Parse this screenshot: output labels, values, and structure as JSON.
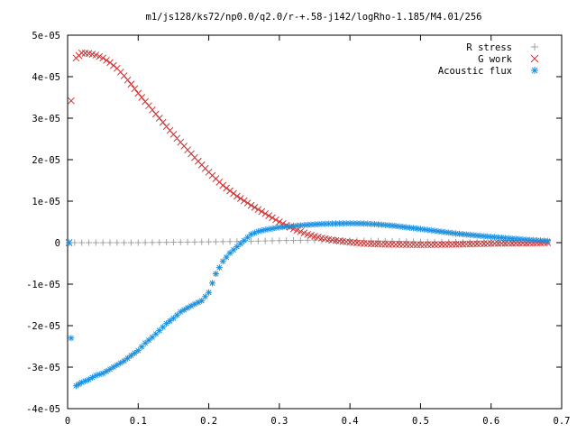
{
  "chart_data": {
    "type": "scatter",
    "title": "m1/js128/ks72/np0.0/q2.0/r-+.58-j142/logRho-1.185/M4.01/256",
    "xlabel": "",
    "ylabel": "",
    "xlim": [
      0,
      0.7
    ],
    "ylim": [
      -4e-05,
      5e-05
    ],
    "x_ticks": [
      {
        "value": 0,
        "label": "0"
      },
      {
        "value": 0.1,
        "label": "0.1"
      },
      {
        "value": 0.2,
        "label": "0.2"
      },
      {
        "value": 0.3,
        "label": "0.3"
      },
      {
        "value": 0.4,
        "label": "0.4"
      },
      {
        "value": 0.5,
        "label": "0.5"
      },
      {
        "value": 0.6,
        "label": "0.6"
      },
      {
        "value": 0.7,
        "label": "0.7"
      }
    ],
    "y_ticks": [
      {
        "value": 5e-05,
        "label": "5e-05"
      },
      {
        "value": 4e-05,
        "label": "4e-05"
      },
      {
        "value": 3e-05,
        "label": "3e-05"
      },
      {
        "value": 2e-05,
        "label": "2e-05"
      },
      {
        "value": 1e-05,
        "label": "1e-05"
      },
      {
        "value": 0,
        "label": "0"
      },
      {
        "value": -1e-05,
        "label": "-1e-05"
      },
      {
        "value": -2e-05,
        "label": "-2e-05"
      },
      {
        "value": -3e-05,
        "label": "-3e-05"
      },
      {
        "value": -4e-05,
        "label": "-4e-05"
      }
    ],
    "grid": false,
    "legend_position": "top-right",
    "series": [
      {
        "name": "R stress",
        "marker": "plus",
        "color": "#a0a0a0",
        "x": [
          0.002,
          0.01,
          0.05,
          0.1,
          0.15,
          0.2,
          0.25,
          0.3,
          0.35,
          0.4,
          0.45,
          0.5,
          0.55,
          0.6,
          0.65,
          0.68
        ],
        "y": [
          0,
          0,
          0.0,
          0.0,
          1e-07,
          2e-07,
          3e-07,
          5e-07,
          6e-07,
          5e-07,
          4e-07,
          2e-07,
          1e-07,
          0,
          0,
          0
        ]
      },
      {
        "name": "G work",
        "marker": "cross",
        "color": "#d03030",
        "x": [
          0.002,
          0.005,
          0.012,
          0.02,
          0.03,
          0.04,
          0.05,
          0.06,
          0.07,
          0.08,
          0.09,
          0.1,
          0.12,
          0.14,
          0.16,
          0.18,
          0.2,
          0.22,
          0.24,
          0.26,
          0.28,
          0.3,
          0.32,
          0.34,
          0.36,
          0.38,
          0.4,
          0.42,
          0.45,
          0.5,
          0.55,
          0.6,
          0.65,
          0.68
        ],
        "y": [
          0.0,
          3.42e-05,
          4.45e-05,
          4.57e-05,
          4.56e-05,
          4.52e-05,
          4.45e-05,
          4.34e-05,
          4.2e-05,
          4.02e-05,
          3.82e-05,
          3.6e-05,
          3.2e-05,
          2.8e-05,
          2.42e-05,
          2.05e-05,
          1.7e-05,
          1.38e-05,
          1.12e-05,
          9e-06,
          7e-06,
          5e-06,
          3.3e-06,
          2e-06,
          1.1e-06,
          5e-07,
          1e-07,
          -2e-07,
          -4e-07,
          -5e-07,
          -4e-07,
          -2e-07,
          -1e-07,
          0
        ]
      },
      {
        "name": "Acoustic flux",
        "marker": "star",
        "color": "#1a90e0",
        "x": [
          0.002,
          0.005,
          0.012,
          0.02,
          0.03,
          0.04,
          0.05,
          0.06,
          0.07,
          0.08,
          0.09,
          0.1,
          0.11,
          0.12,
          0.13,
          0.14,
          0.15,
          0.16,
          0.17,
          0.18,
          0.19,
          0.2,
          0.21,
          0.22,
          0.23,
          0.24,
          0.25,
          0.26,
          0.27,
          0.28,
          0.3,
          0.32,
          0.34,
          0.36,
          0.38,
          0.4,
          0.42,
          0.44,
          0.46,
          0.5,
          0.55,
          0.6,
          0.65,
          0.68
        ],
        "y": [
          0.0,
          -2.3e-05,
          -3.45e-05,
          -3.37e-05,
          -3.3e-05,
          -3.2e-05,
          -3.15e-05,
          -3.05e-05,
          -2.95e-05,
          -2.85e-05,
          -2.72e-05,
          -2.6e-05,
          -2.42e-05,
          -2.28e-05,
          -2.12e-05,
          -1.95e-05,
          -1.82e-05,
          -1.67e-05,
          -1.57e-05,
          -1.48e-05,
          -1.4e-05,
          -1.2e-05,
          -7.5e-06,
          -4.5e-06,
          -2.5e-06,
          -1e-06,
          5e-07,
          2e-06,
          2.7e-06,
          3.1e-06,
          3.7e-06,
          4e-06,
          4.3e-06,
          4.5e-06,
          4.6e-06,
          4.65e-06,
          4.6e-06,
          4.4e-06,
          4.1e-06,
          3.3e-06,
          2.2e-06,
          1.4e-06,
          7e-07,
          4e-07
        ]
      }
    ]
  }
}
